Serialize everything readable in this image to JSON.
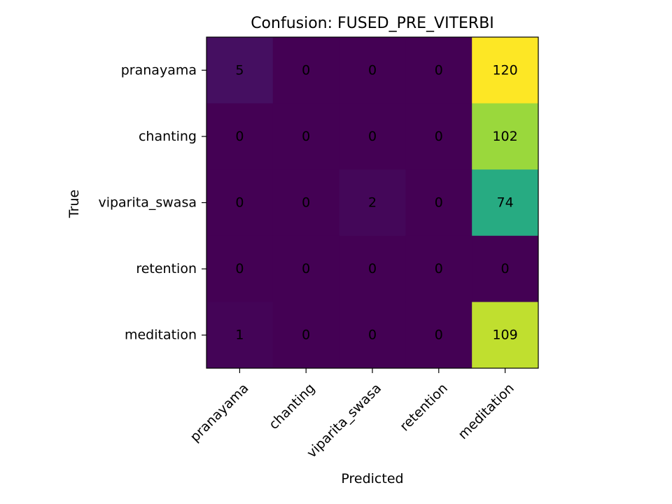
{
  "chart_data": {
    "type": "heatmap",
    "title": "Confusion: FUSED_PRE_VITERBI",
    "xlabel": "Predicted",
    "ylabel": "True",
    "x_categories": [
      "pranayama",
      "chanting",
      "viparita_swasa",
      "retention",
      "meditation"
    ],
    "y_categories": [
      "pranayama",
      "chanting",
      "viparita_swasa",
      "retention",
      "meditation"
    ],
    "values": [
      [
        5,
        0,
        0,
        0,
        120
      ],
      [
        0,
        0,
        0,
        0,
        102
      ],
      [
        0,
        0,
        2,
        0,
        74
      ],
      [
        0,
        0,
        0,
        0,
        0
      ],
      [
        1,
        0,
        0,
        0,
        109
      ]
    ],
    "colormap": "viridis",
    "value_range": [
      0,
      120
    ]
  }
}
